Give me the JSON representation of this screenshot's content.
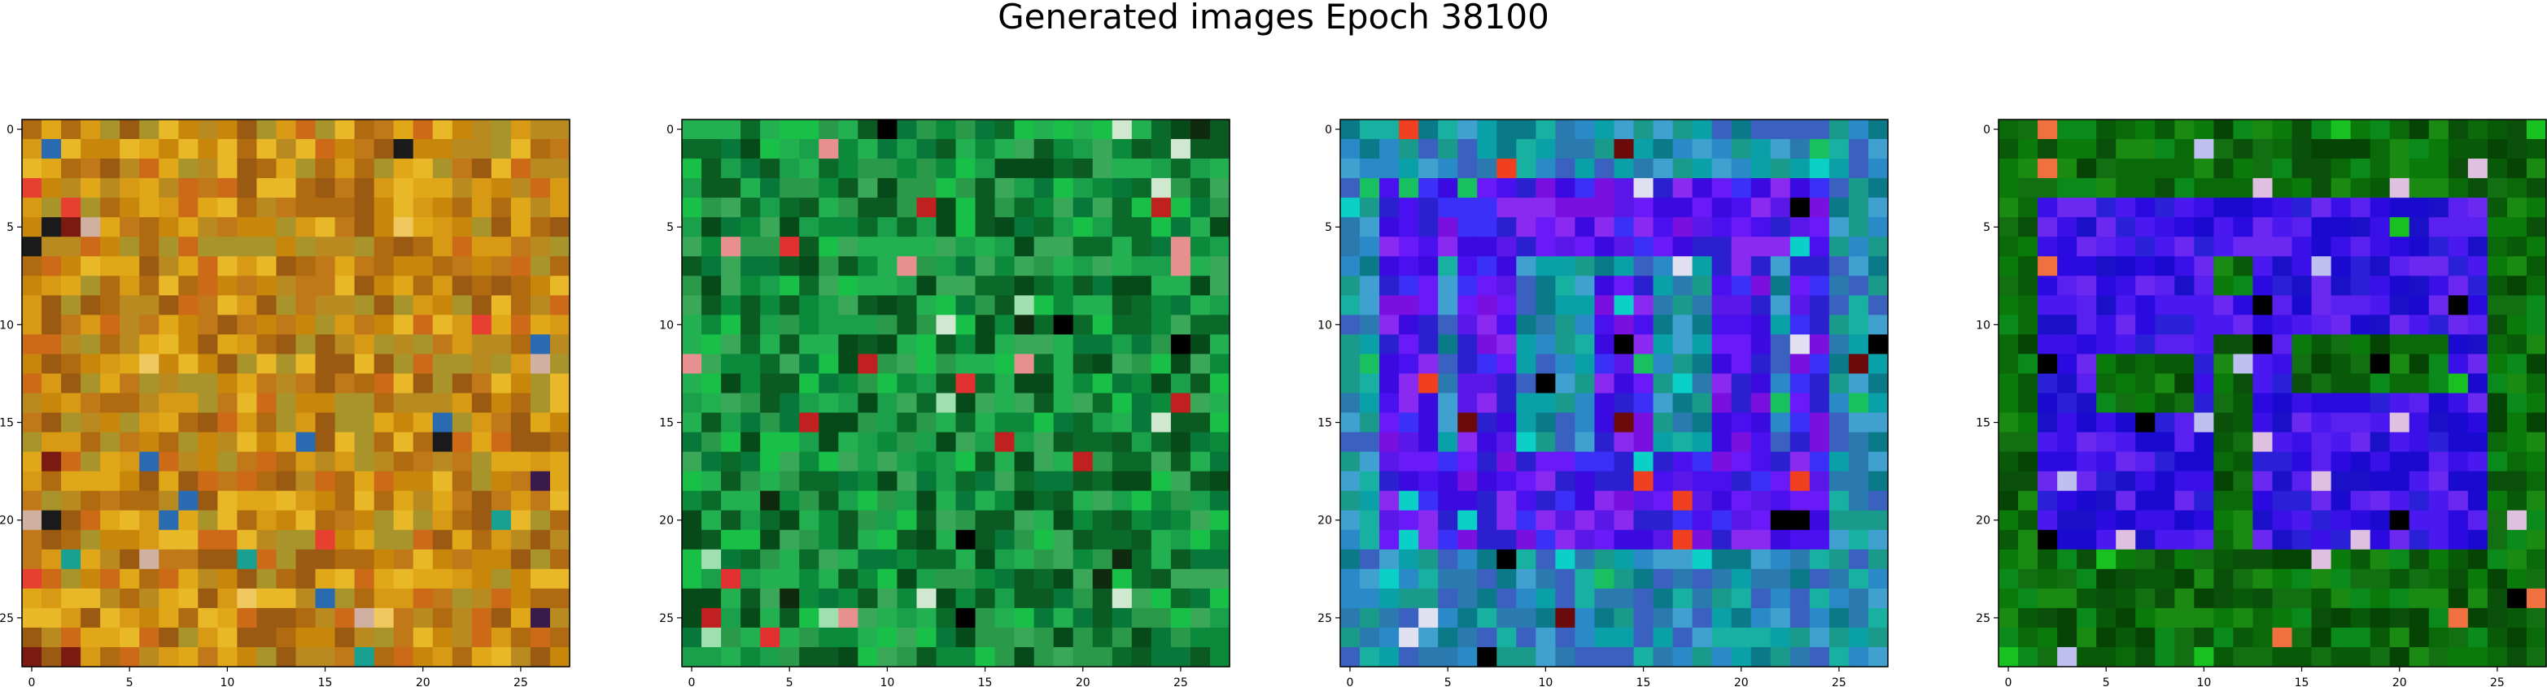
{
  "figure": {
    "title": "Generated images Epoch 38100"
  },
  "chart_data": [
    {
      "type": "heatmap",
      "grid_size": 28,
      "xticks": [
        0,
        5,
        10,
        15,
        20,
        25
      ],
      "yticks": [
        0,
        5,
        10,
        15,
        20,
        25
      ],
      "xlim": [
        -0.5,
        27.5
      ],
      "ylim": [
        27.5,
        -0.5
      ],
      "palette": [
        "#c8860a",
        "#d89a14",
        "#b06a10",
        "#e0a818",
        "#a8942a",
        "#c07818",
        "#e8b828",
        "#9a5a12",
        "#cc6a18",
        "#b88a20"
      ],
      "accents": [
        "#1a1a1a",
        "#e84030",
        "#3a1a4a",
        "#f0c860",
        "#2a6ab0",
        "#18a090",
        "#7a1a10",
        "#d0b0a0"
      ],
      "theme": "orange-autumn"
    },
    {
      "type": "heatmap",
      "grid_size": 28,
      "xticks": [
        0,
        5,
        10,
        15,
        20,
        25
      ],
      "yticks": [
        0,
        5,
        10,
        15,
        20,
        25
      ],
      "xlim": [
        -0.5,
        27.5
      ],
      "ylim": [
        27.5,
        -0.5
      ],
      "palette": [
        "#0a8a3a",
        "#0a6a2a",
        "#1aa04a",
        "#0a5a22",
        "#22b050",
        "#08783a",
        "#2a9a4a",
        "#064a1a",
        "#18c048",
        "#3aa858"
      ],
      "accents": [
        "#000000",
        "#e03030",
        "#e89090",
        "#d0e8d0",
        "#102a10",
        "#a0e0b0",
        "#c02020"
      ],
      "theme": "green-noise"
    },
    {
      "type": "heatmap",
      "grid_size": 28,
      "xticks": [
        0,
        5,
        10,
        15,
        20,
        25
      ],
      "yticks": [
        0,
        5,
        10,
        15,
        20,
        25
      ],
      "xlim": [
        -0.5,
        27.5
      ],
      "ylim": [
        27.5,
        -0.5
      ],
      "palette_bg": [
        "#1a9a8a",
        "#2a7ab0",
        "#0aa0a8",
        "#3a60c0",
        "#18b0a0",
        "#2a8ac8",
        "#0a7a88",
        "#40a0d0"
      ],
      "palette_fg": [
        "#4a10f0",
        "#6a1af8",
        "#3a0ae0",
        "#8a2af0",
        "#2a20d0",
        "#5a18e8",
        "#7a10e0",
        "#3a30f8"
      ],
      "accents": [
        "#6a0a0a",
        "#f04020",
        "#e0e0f0",
        "#0ad0c8",
        "#000000",
        "#18c060"
      ],
      "theme": "blue-purple-shape"
    },
    {
      "type": "heatmap",
      "grid_size": 28,
      "xticks": [
        0,
        5,
        10,
        15,
        20,
        25
      ],
      "yticks": [
        0,
        5,
        10,
        15,
        20,
        25
      ],
      "xlim": [
        -0.5,
        27.5
      ],
      "ylim": [
        27.5,
        -0.5
      ],
      "palette_bg": [
        "#0a6a0a",
        "#0a7a0a",
        "#085a08",
        "#1a8a12",
        "#0a500a",
        "#127012",
        "#0a8a1a",
        "#064406"
      ],
      "palette_fg": [
        "#3a10e8",
        "#2a0ae0",
        "#5a20f0",
        "#1a10c8",
        "#4a18f0",
        "#2a20d8",
        "#6a28f0",
        "#1a0ad0"
      ],
      "accents": [
        "#000000",
        "#f07040",
        "#e0c0e0",
        "#c0c0f0",
        "#18c020"
      ],
      "theme": "green-blue-shape"
    }
  ]
}
